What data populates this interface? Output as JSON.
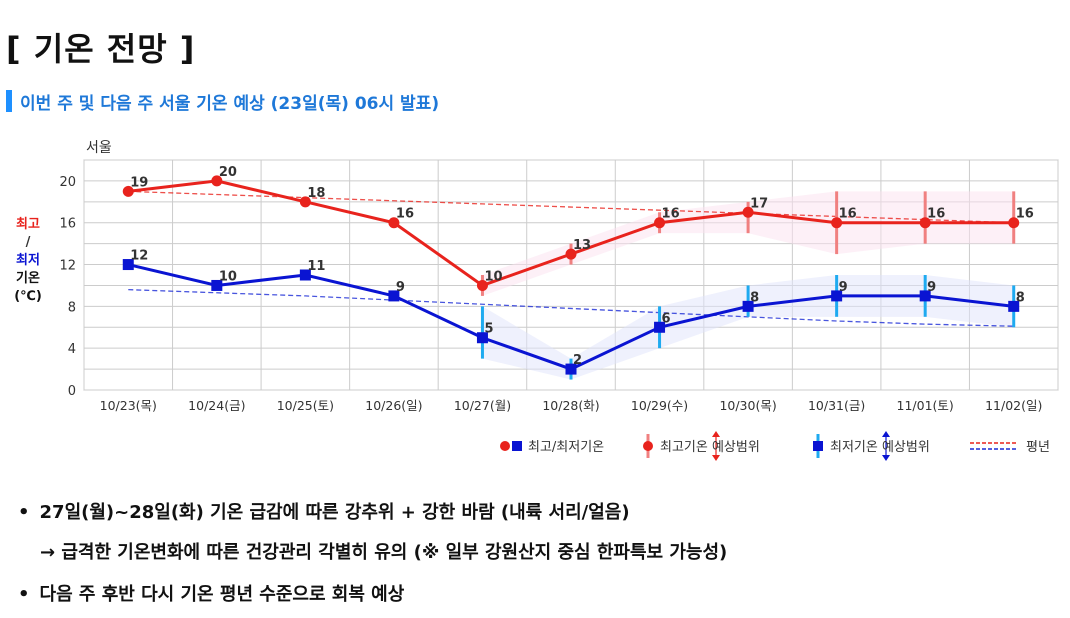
{
  "header": {
    "title": "[ 기온 전망 ]",
    "subtitle": "이번 주 및 다음 주 서울 기온 예상 (23일(목) 06시 발표)"
  },
  "chart_data": {
    "type": "line",
    "station_label": "서울",
    "ylabel_lines": [
      "최고",
      "/",
      "최저",
      "기온",
      "(℃)"
    ],
    "ylim": [
      0,
      22
    ],
    "yticks": [
      0,
      4,
      8,
      12,
      16,
      20
    ],
    "categories": [
      "10/23(목)",
      "10/24(금)",
      "10/25(토)",
      "10/26(일)",
      "10/27(월)",
      "10/28(화)",
      "10/29(수)",
      "10/30(목)",
      "10/31(금)",
      "11/01(토)",
      "11/02(일)"
    ],
    "series": [
      {
        "name": "최고기온",
        "color": "#e8231d",
        "values": [
          19,
          20,
          18,
          16,
          10,
          13,
          16,
          17,
          16,
          16,
          16
        ]
      },
      {
        "name": "최저기온",
        "color": "#0a14d2",
        "values": [
          12,
          10,
          11,
          9,
          5,
          2,
          6,
          8,
          9,
          9,
          8
        ]
      }
    ],
    "normal_high": [
      19,
      18.7,
      18.4,
      18.1,
      17.8,
      17.5,
      17.2,
      16.9,
      16.6,
      16.3,
      16
    ],
    "normal_low": [
      9.6,
      9.3,
      9.0,
      8.6,
      8.2,
      7.8,
      7.4,
      7.0,
      6.6,
      6.3,
      6.1
    ],
    "high_range": [
      null,
      null,
      null,
      null,
      [
        9,
        11
      ],
      [
        12,
        14
      ],
      [
        15,
        17
      ],
      [
        15,
        18
      ],
      [
        13,
        19
      ],
      [
        14,
        19
      ],
      [
        14,
        19
      ]
    ],
    "low_range": [
      null,
      null,
      null,
      null,
      [
        3,
        8
      ],
      [
        1,
        3
      ],
      [
        4,
        8
      ],
      [
        7,
        10
      ],
      [
        7,
        11
      ],
      [
        7,
        11
      ],
      [
        6,
        10
      ]
    ],
    "legend": {
      "items": [
        "최고/최저기온",
        "최고기온 예상범위",
        "최저기온 예상범위",
        "평년"
      ],
      "placement": "bottom-right"
    },
    "colors": {
      "high": "#e8231d",
      "low": "#0a14d2",
      "high_range": "#f08080",
      "low_range": "#1eaaf0",
      "normal_high": "#e8231d",
      "normal_low": "#1a2ad6",
      "grid": "#cccccc"
    }
  },
  "notes": {
    "bullet1": "27일(월)~28일(화) 기온 급감에 따른 강추위 + 강한 바람 (내륙 서리/얼음)",
    "bullet1_sub": "→ 급격한 기온변화에 따른 건강관리 각별히 유의 (※ 일부 강원산지 중심 한파특보 가능성)",
    "bullet2": "다음 주 후반 다시 기온 평년 수준으로 회복 예상",
    "bullet_char": "•"
  }
}
